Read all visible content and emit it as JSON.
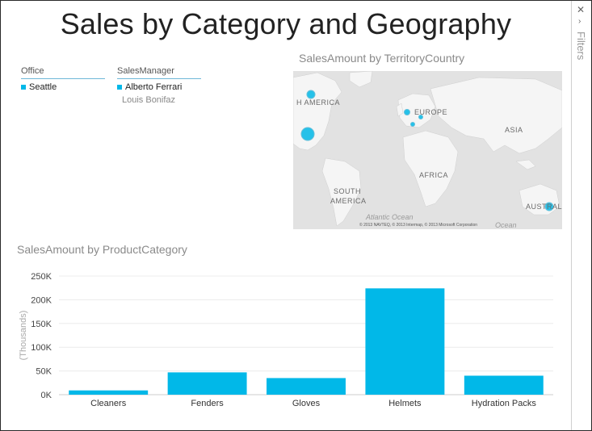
{
  "report": {
    "title": "Sales by Category and Geography"
  },
  "slicers": {
    "office": {
      "header": "Office",
      "items": [
        "Seattle"
      ]
    },
    "sales_manager": {
      "header": "SalesManager",
      "selected": "Alberto Ferrari",
      "unselected": "Louis Bonifaz"
    }
  },
  "map": {
    "title": "SalesAmount by TerritoryCountry",
    "labels": {
      "north_america": "H AMERICA",
      "europe": "EUROPE",
      "asia": "ASIA",
      "africa": "AFRICA",
      "south_america_1": "SOUTH",
      "south_america_2": "AMERICA",
      "australia": "AUSTRALI"
    },
    "ocean_label": "Atlantic Ocean",
    "ocean_label_2": "Ocean",
    "copyright": "© 2013 NAVTEQ, © 2013 Intermap, © 2013 Microsoft Corporation",
    "bubble_color": "#01b8e8"
  },
  "filters_pane": {
    "label": "Filters",
    "close_icon": "close-icon",
    "collapse_icon": "chevron-icon"
  },
  "chart_data": {
    "type": "bar",
    "title": "SalesAmount by ProductCategory",
    "ylabel": "(Thousands)",
    "categories": [
      "Cleaners",
      "Fenders",
      "Gloves",
      "Helmets",
      "Hydration Packs"
    ],
    "values": [
      9,
      47,
      35,
      224,
      40
    ],
    "ylim": [
      0,
      250
    ],
    "yticks": [
      "0K",
      "50K",
      "100K",
      "150K",
      "200K",
      "250K"
    ],
    "ytick_values": [
      0,
      50,
      100,
      150,
      200,
      250
    ],
    "bar_color": "#01b8e8",
    "grid": true
  }
}
